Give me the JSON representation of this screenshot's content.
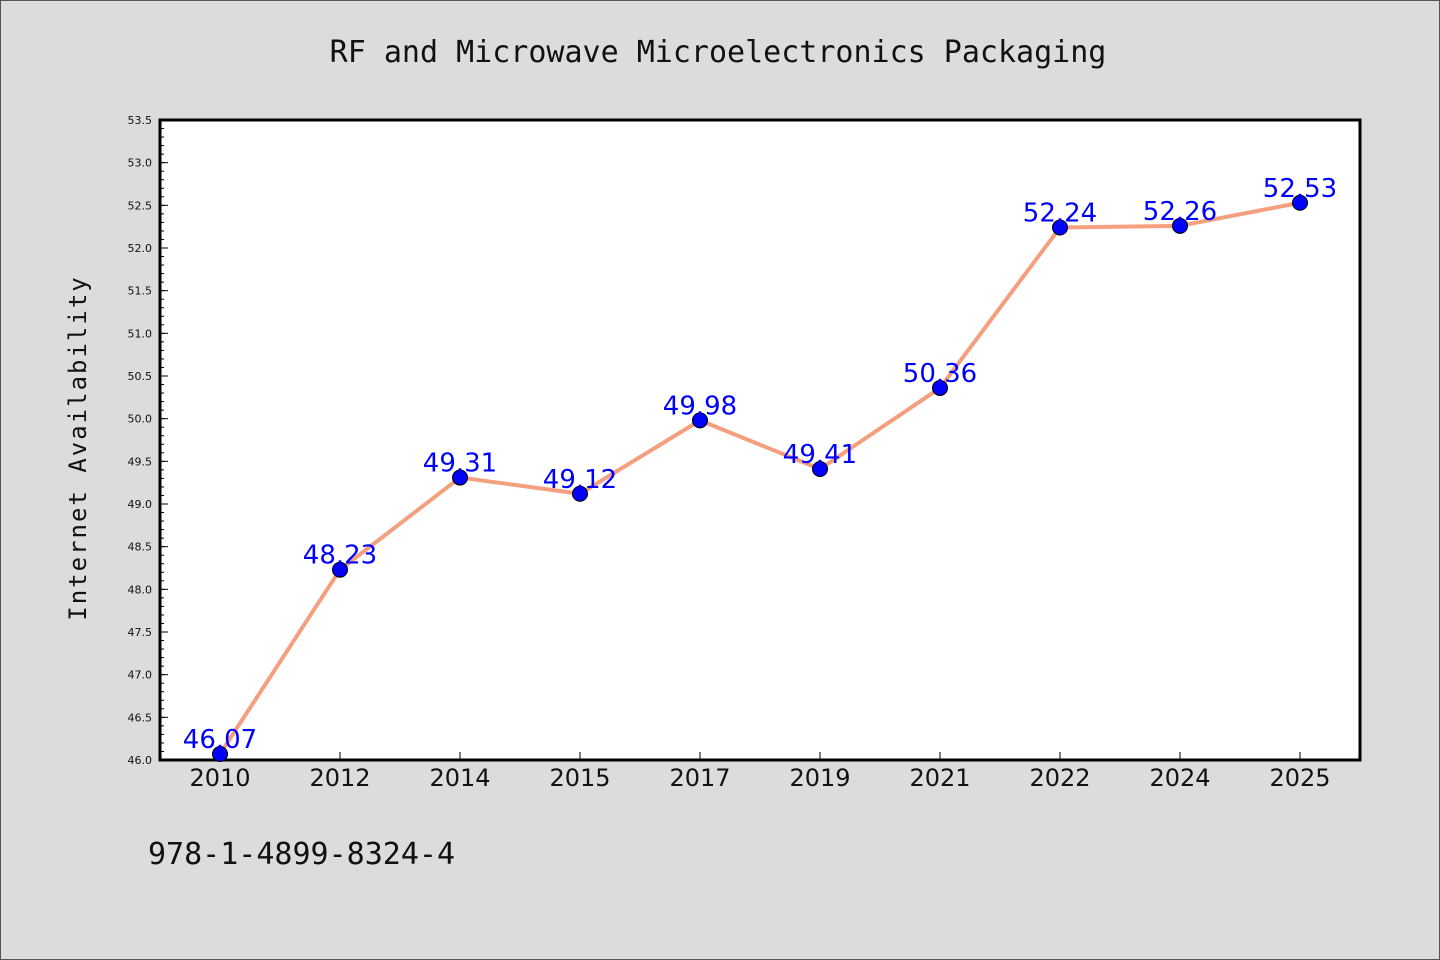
{
  "chart_data": {
    "type": "line",
    "title": "RF and Microwave Microelectronics Packaging",
    "xlabel": "",
    "ylabel": "Internet Availability",
    "categories": [
      "2010",
      "2012",
      "2014",
      "2015",
      "2017",
      "2019",
      "2021",
      "2022",
      "2024",
      "2025"
    ],
    "series": [
      {
        "values": [
          46.07,
          48.23,
          49.31,
          49.12,
          49.98,
          49.41,
          50.36,
          52.24,
          52.26,
          52.53
        ],
        "labels": [
          "46.07",
          "48.23",
          "49.31",
          "49.12",
          "49.98",
          "49.41",
          "50.36",
          "52.24",
          "52.26",
          "52.53"
        ],
        "line_color": "#f4a07f",
        "marker_color": "#0000ff",
        "label_color": "#0000ff"
      }
    ],
    "ylim": [
      46.0,
      53.5
    ],
    "yticks": [
      "46.0",
      "46.5",
      "47.0",
      "47.5",
      "48.0",
      "48.5",
      "49.0",
      "49.5",
      "50.0",
      "50.5",
      "51.0",
      "51.5",
      "52.0",
      "52.5",
      "53.0",
      "53.5"
    ],
    "grid": false,
    "legend": "none"
  },
  "footnote": "978-1-4899-8324-4",
  "colors": {
    "background": "#dcdcdc",
    "plot_background": "#ffffff"
  }
}
